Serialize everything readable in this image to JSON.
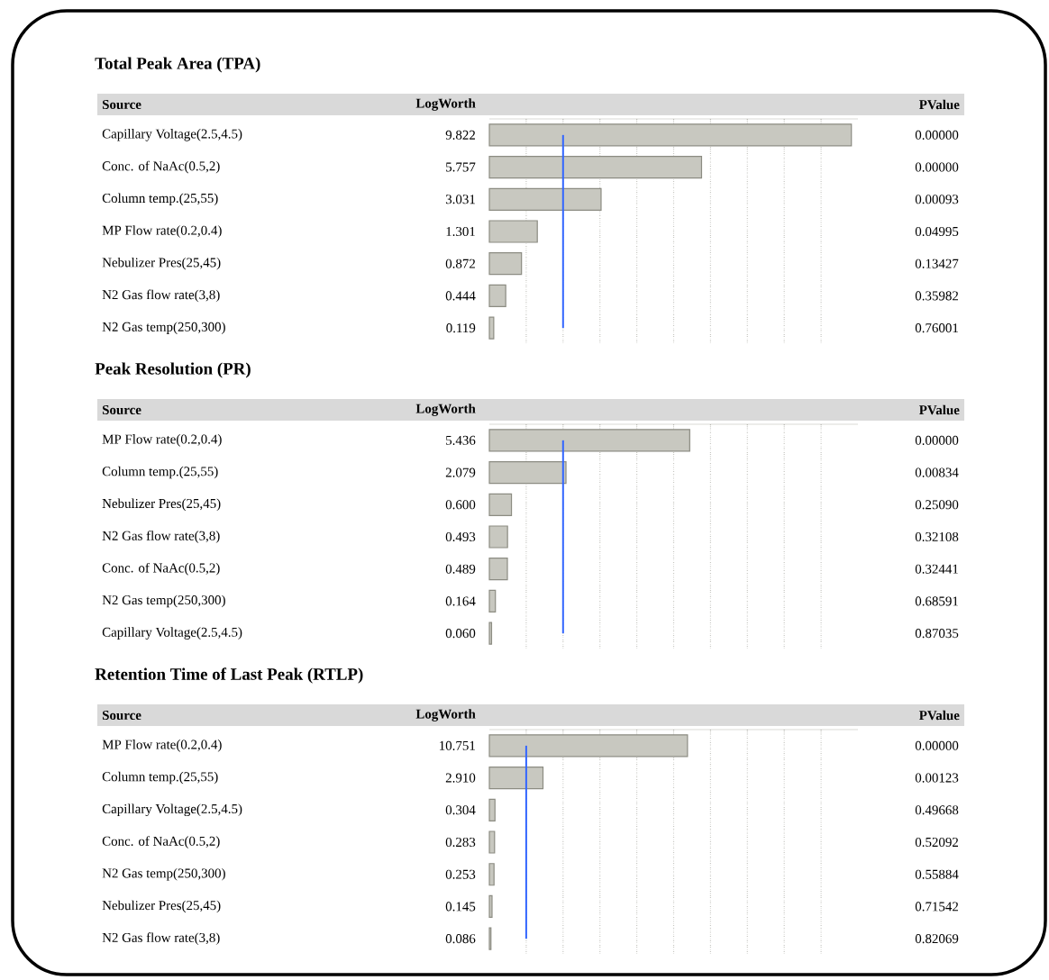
{
  "chart_data": [
    {
      "type": "bar",
      "orientation": "horizontal",
      "title": "Total Peak Area (TPA)",
      "ylabel": "Source",
      "xlabel": "LogWorth",
      "categories": [
        "Capillary Voltage(2.5,4.5)",
        "Conc. of NaAc(0.5,2)",
        "Column temp.(25,55)",
        "MP Flow rate(0.2,0.4)",
        "Nebulizer Pres(25,45)",
        "N2 Gas flow rate(3,8)",
        "N2 Gas temp(250,300)"
      ],
      "values": [
        9.822,
        5.757,
        3.031,
        1.301,
        0.872,
        0.444,
        0.119
      ],
      "color": "#c8c8c0",
      "data_labels": true,
      "xlim": [
        0,
        10
      ],
      "xticks": [
        {
          "value": 1,
          "label": null
        },
        {
          "value": 2,
          "label": null
        },
        {
          "value": 3,
          "label": null
        },
        {
          "value": 4,
          "label": null
        },
        {
          "value": 5,
          "label": null
        },
        {
          "value": 6,
          "label": null
        },
        {
          "value": 7,
          "label": null
        },
        {
          "value": 8,
          "label": null
        },
        {
          "value": 9,
          "label": null
        }
      ],
      "grid": "x",
      "ref_lines": [
        {
          "axis": "x",
          "value": 2,
          "color": "#3366ff"
        }
      ],
      "annotations": [
        "PValue",
        "0.00000",
        "0.00000",
        "0.00093",
        "0.04995",
        "0.13427",
        "0.35982",
        "0.76001"
      ]
    },
    {
      "type": "bar",
      "orientation": "horizontal",
      "title": "Peak Resolution (PR)",
      "ylabel": "Source",
      "xlabel": "LogWorth",
      "categories": [
        "MP Flow rate(0.2,0.4)",
        "Column temp.(25,55)",
        "Nebulizer Pres(25,45)",
        "N2 Gas flow rate(3,8)",
        "Conc. of NaAc(0.5,2)",
        "N2 Gas temp(250,300)",
        "Capillary Voltage(2.5,4.5)"
      ],
      "values": [
        5.436,
        2.079,
        0.6,
        0.493,
        0.489,
        0.164,
        0.06
      ],
      "color": "#c8c8c0",
      "data_labels": true,
      "value_labels": [
        "5.436",
        "2.079",
        "0.600",
        "0.493",
        "0.489",
        "0.164",
        "0.060"
      ],
      "xlim": [
        0,
        10
      ],
      "xticks": [
        {
          "value": 1,
          "label": null
        },
        {
          "value": 2,
          "label": null
        },
        {
          "value": 3,
          "label": null
        },
        {
          "value": 4,
          "label": null
        },
        {
          "value": 5,
          "label": null
        },
        {
          "value": 6,
          "label": null
        },
        {
          "value": 7,
          "label": null
        },
        {
          "value": 8,
          "label": null
        },
        {
          "value": 9,
          "label": null
        }
      ],
      "grid": "x",
      "ref_lines": [
        {
          "axis": "x",
          "value": 2,
          "color": "#3366ff"
        }
      ],
      "annotations": [
        "PValue",
        "0.00000",
        "0.00834",
        "0.25090",
        "0.32108",
        "0.32441",
        "0.68591",
        "0.87035"
      ]
    },
    {
      "type": "bar",
      "orientation": "horizontal",
      "title": "Retention Time of Last Peak (RTLP)",
      "ylabel": "Source",
      "xlabel": "LogWorth",
      "categories": [
        "MP Flow rate(0.2,0.4)",
        "Column temp.(25,55)",
        "Capillary Voltage(2.5,4.5)",
        "Conc. of NaAc(0.5,2)",
        "N2 Gas temp(250,300)",
        "Nebulizer Pres(25,45)",
        "N2 Gas flow rate(3,8)"
      ],
      "values": [
        10.751,
        2.91,
        0.304,
        0.283,
        0.253,
        0.145,
        0.086
      ],
      "color": "#c8c8c0",
      "data_labels": true,
      "value_labels": [
        "10.751",
        "2.910",
        "0.304",
        "0.283",
        "0.253",
        "0.145",
        "0.086"
      ],
      "xlim": [
        0,
        20
      ],
      "xticks": [
        {
          "value": 2,
          "label": null
        },
        {
          "value": 4,
          "label": null
        },
        {
          "value": 6,
          "label": null
        },
        {
          "value": 8,
          "label": null
        },
        {
          "value": 10,
          "label": null
        },
        {
          "value": 12,
          "label": null
        },
        {
          "value": 14,
          "label": null
        },
        {
          "value": 16,
          "label": null
        },
        {
          "value": 18,
          "label": null
        }
      ],
      "grid": "x",
      "ref_lines": [
        {
          "axis": "x",
          "value": 2,
          "color": "#3366ff"
        }
      ],
      "annotations": [
        "PValue",
        "0.00000",
        "0.00123",
        "0.49668",
        "0.52092",
        "0.55884",
        "0.71542",
        "0.82069"
      ]
    }
  ]
}
